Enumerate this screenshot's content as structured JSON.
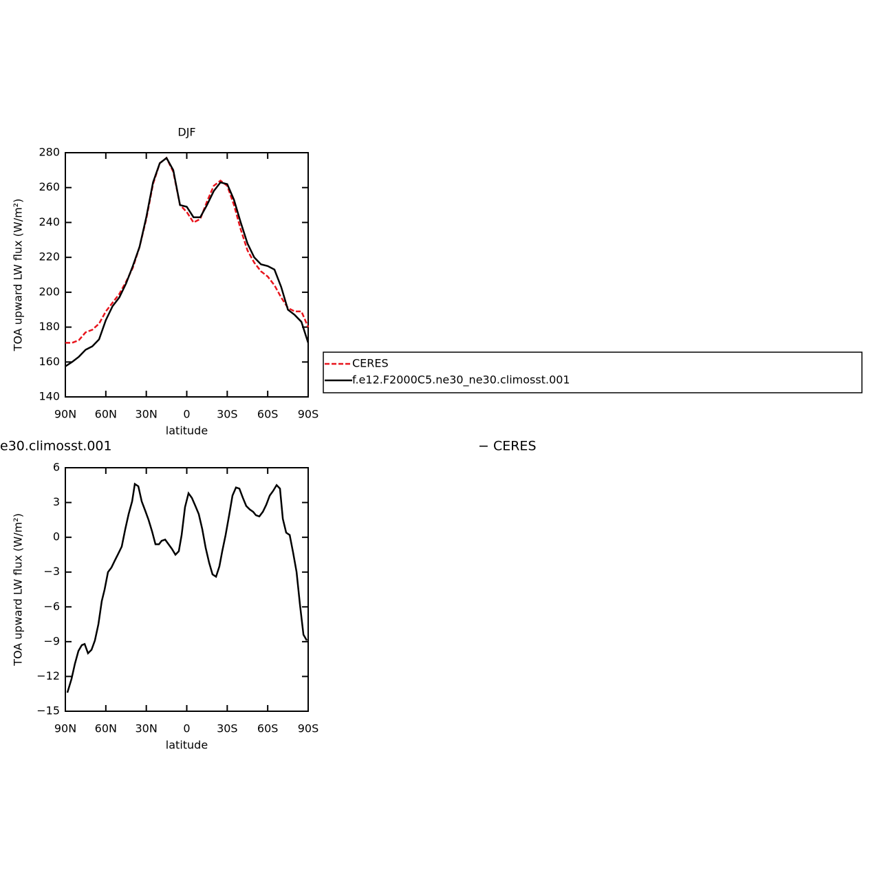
{
  "chart_data": [
    {
      "type": "line",
      "title": "DJF",
      "xlabel": "latitude",
      "ylabel": "TOA upward LW flux (W/m²)",
      "xlim": [
        90,
        -90
      ],
      "xticks": [
        {
          "value": 90,
          "label": "90N"
        },
        {
          "value": 60,
          "label": "60N"
        },
        {
          "value": 30,
          "label": "30N"
        },
        0,
        {
          "value": -30,
          "label": "30S"
        },
        {
          "value": -60,
          "label": "60S"
        },
        {
          "value": -90,
          "label": "90S"
        }
      ],
      "ylim": [
        140,
        280
      ],
      "yticks": [
        140,
        160,
        180,
        200,
        220,
        240,
        260,
        280
      ],
      "x": [
        90,
        85,
        80,
        75,
        70,
        65,
        60,
        55,
        50,
        45,
        40,
        35,
        30,
        25,
        20,
        15,
        10,
        5,
        0,
        -5,
        -10,
        -15,
        -20,
        -25,
        -30,
        -35,
        -40,
        -45,
        -50,
        -55,
        -60,
        -65,
        -70,
        -75,
        -80,
        -85,
        -90
      ],
      "legend": "right",
      "series": [
        {
          "name": "CERES",
          "color": "#e8141c",
          "dash": true,
          "values": [
            171,
            171,
            172.5,
            177,
            178.5,
            182,
            189,
            194,
            199,
            206,
            214,
            226,
            242,
            262,
            274,
            277,
            269,
            250,
            246,
            240,
            242,
            252,
            261,
            264,
            261,
            250,
            236,
            224,
            217,
            212,
            209,
            204,
            197,
            191,
            189,
            189,
            180
          ]
        },
        {
          "name": "f.e12.F2000C5.ne30_ne30.climosst.001",
          "color": "#000000",
          "dash": false,
          "values": [
            157.5,
            160,
            163,
            167,
            169,
            173,
            184,
            192,
            197,
            205,
            215,
            226,
            243,
            263,
            274,
            277,
            270,
            250,
            249,
            243,
            243,
            250,
            258,
            263,
            262,
            253,
            240,
            228,
            220,
            216,
            215,
            213,
            203,
            190,
            187,
            183,
            171
          ]
        }
      ]
    },
    {
      "type": "line",
      "title_parts": [
        "e30.climosst.001",
        "− CERES"
      ],
      "xlabel": "latitude",
      "ylabel": "TOA upward LW flux (W/m²)",
      "xlim": [
        90,
        -90
      ],
      "xticks": [
        {
          "value": 90,
          "label": "90N"
        },
        {
          "value": 60,
          "label": "60N"
        },
        {
          "value": 30,
          "label": "30N"
        },
        0,
        {
          "value": -30,
          "label": "30S"
        },
        {
          "value": -60,
          "label": "60S"
        },
        {
          "value": -90,
          "label": "90S"
        }
      ],
      "ylim": [
        -15,
        6
      ],
      "yticks": [
        {
          "value": -15,
          "label": "−15"
        },
        {
          "value": -12,
          "label": "−12"
        },
        {
          "value": -9,
          "label": "−9"
        },
        {
          "value": -6,
          "label": "−6"
        },
        {
          "value": -3,
          "label": "−3"
        },
        0,
        3,
        6
      ],
      "x": [
        88.5,
        85.4,
        82.9,
        80.3,
        77.8,
        75.7,
        73.2,
        70.6,
        68.1,
        65.5,
        63,
        60.9,
        58.4,
        55.8,
        53.3,
        50.7,
        48.2,
        45.6,
        43.1,
        40.5,
        38.5,
        35.9,
        33.4,
        30.8,
        28.3,
        25.7,
        23.2,
        20.6,
        18.6,
        16,
        13.5,
        11,
        8.4,
        5.9,
        3.8,
        1.3,
        -1.3,
        -3.8,
        -6.4,
        -8.9,
        -11.5,
        -14,
        -16.6,
        -19.1,
        -21.7,
        -24.2,
        -26.3,
        -28.8,
        -31.4,
        -33.9,
        -36.5,
        -39,
        -41.6,
        -44.1,
        -46.7,
        -49.2,
        -51.3,
        -53.8,
        -56.4,
        -58.9,
        -61.5,
        -64,
        -66.6,
        -69.1,
        -71.2,
        -73.7,
        -76.3,
        -78.8,
        -81.4,
        -83.9,
        -86.5,
        -89
      ],
      "series": [
        {
          "color": "#000000",
          "dash": false,
          "values": [
            -13.4,
            -12.2,
            -10.9,
            -9.8,
            -9.3,
            -9.2,
            -10,
            -9.7,
            -8.9,
            -7.5,
            -5.5,
            -4.5,
            -3,
            -2.6,
            -2,
            -1.4,
            -0.8,
            0.7,
            2,
            3.1,
            4.6,
            4.4,
            3.1,
            2.3,
            1.5,
            0.5,
            -0.6,
            -0.6,
            -0.3,
            -0.2,
            -0.6,
            -1,
            -1.5,
            -1.2,
            0.2,
            2.6,
            3.8,
            3.4,
            2.7,
            2,
            0.7,
            -0.9,
            -2.2,
            -3.2,
            -3.4,
            -2.5,
            -1.2,
            0.2,
            1.9,
            3.6,
            4.3,
            4.2,
            3.4,
            2.7,
            2.4,
            2.2,
            1.9,
            1.8,
            2.2,
            2.8,
            3.6,
            4,
            4.5,
            4.2,
            1.6,
            0.4,
            0.2,
            -1.3,
            -3,
            -5.8,
            -8.4,
            -8.9
          ]
        }
      ]
    }
  ]
}
